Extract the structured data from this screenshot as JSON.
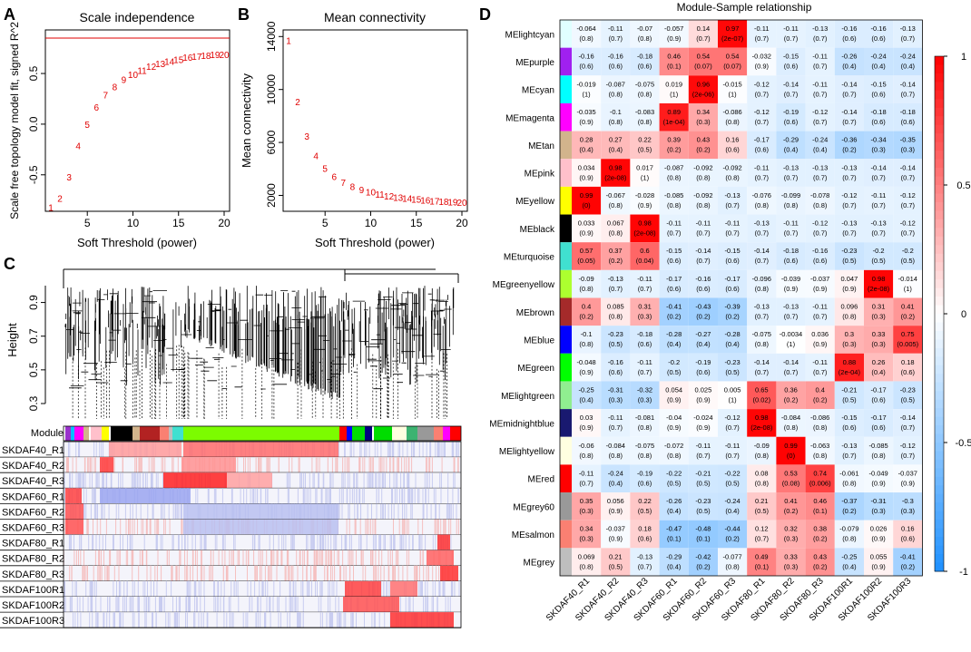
{
  "chart_data": [
    {
      "panel": "A",
      "type": "scatter",
      "title": "Scale independence",
      "xlabel": "Soft Threshold (power)",
      "ylabel": "Scale free topology model fit, signed R^2",
      "x": [
        1,
        2,
        3,
        4,
        5,
        6,
        7,
        8,
        9,
        10,
        11,
        12,
        13,
        14,
        15,
        16,
        17,
        18,
        19,
        20
      ],
      "y": [
        -0.82,
        -0.73,
        -0.52,
        -0.21,
        0.0,
        0.17,
        0.29,
        0.37,
        0.44,
        0.49,
        0.53,
        0.57,
        0.6,
        0.62,
        0.64,
        0.66,
        0.67,
        0.68,
        0.69,
        0.69
      ],
      "xticks": [
        5,
        10,
        15,
        20
      ],
      "yticks": [
        -0.5,
        0.0,
        0.5
      ],
      "xlim": [
        1,
        20
      ],
      "ylim": [
        -0.86,
        0.93
      ],
      "hline": 0.85,
      "point_color": "#e00000",
      "line_color": "#e00000"
    },
    {
      "panel": "B",
      "type": "scatter",
      "title": "Mean connectivity",
      "xlabel": "Soft Threshold (power)",
      "ylabel": "Mean connectivity",
      "x": [
        1,
        2,
        3,
        4,
        5,
        6,
        7,
        8,
        9,
        10,
        11,
        12,
        13,
        14,
        15,
        16,
        17,
        18,
        19,
        20
      ],
      "y": [
        13700,
        9100,
        6500,
        5000,
        4050,
        3450,
        3000,
        2700,
        2460,
        2270,
        2100,
        1970,
        1870,
        1790,
        1720,
        1660,
        1600,
        1560,
        1530,
        1500
      ],
      "xticks": [
        5,
        10,
        15,
        20
      ],
      "yticks": [
        2000,
        6000,
        10000,
        14000
      ],
      "xlim": [
        1,
        20
      ],
      "ylim": [
        800,
        14500
      ],
      "point_color": "#e00000"
    },
    {
      "panel": "C",
      "type": "dendrogram",
      "ylabel": "Height",
      "yticks": [
        0.3,
        0.5,
        0.7,
        0.9
      ],
      "ylim": [
        0.3,
        1.0
      ],
      "module_label": "Module",
      "module_colors": [
        "#9932cc",
        "#00bfff",
        "#ff00ff",
        "#d2b48c",
        "#ffc0cb",
        "#ffff00",
        "#000000",
        "#40e0d0",
        "#7cfc00",
        "#b22222",
        "#0000ff",
        "#00dd00",
        "#3cb371",
        "#000080",
        "#ffffe0",
        "#ff0000",
        "#999999",
        "#fa8072",
        "#bebebe"
      ],
      "samples": [
        "SKDAF40_R1",
        "SKDAF40_R2",
        "SKDAF40_R3",
        "SKDAF60_R1",
        "SKDAF60_R2",
        "SKDAF60_R3",
        "SKDAF80_R1",
        "SKDAF80_R2",
        "SKDAF80_R3",
        "SKDAF100R1",
        "SKDAF100R2",
        "SKDAF100R3"
      ]
    },
    {
      "panel": "D",
      "type": "heatmap",
      "title": "Module-Sample relationship",
      "rows": [
        "MElightcyan",
        "MEpurple",
        "MEcyan",
        "MEmagenta",
        "MEtan",
        "MEpink",
        "MEyellow",
        "MEblack",
        "MEturquoise",
        "MEgreenyellow",
        "MEbrown",
        "MEblue",
        "MEgreen",
        "MElightgreen",
        "MEmidnightblue",
        "MElightyellow",
        "MEred",
        "MEgrey60",
        "MEsalmon",
        "MEgrey"
      ],
      "row_colors": [
        "#e0ffff",
        "#a020f0",
        "#00ffff",
        "#ff00ff",
        "#d2b48c",
        "#ffc0cb",
        "#ffff00",
        "#000000",
        "#40e0d0",
        "#adff2f",
        "#a52a2a",
        "#0000ff",
        "#00ff00",
        "#90ee90",
        "#191970",
        "#ffffe0",
        "#ff0000",
        "#999999",
        "#fa8072",
        "#bebebe"
      ],
      "columns": [
        "SKDAF40_R1",
        "SKDAF40_R2",
        "SKDAF40_R3",
        "SKDAF60_R1",
        "SKDAF60_R2",
        "SKDAF60_R3",
        "SKDAF80_R1",
        "SKDAF80_R2",
        "SKDAF80_R3",
        "SKDAF100R1",
        "SKDAF100R2",
        "SKDAF100R3"
      ],
      "values": [
        [
          -0.064,
          -0.11,
          -0.07,
          -0.057,
          0.14,
          0.97,
          -0.11,
          -0.11,
          -0.13,
          -0.16,
          -0.16,
          -0.13
        ],
        [
          -0.16,
          -0.16,
          -0.18,
          0.46,
          0.54,
          0.54,
          -0.032,
          -0.15,
          -0.11,
          -0.26,
          -0.24,
          -0.24
        ],
        [
          -0.019,
          -0.087,
          -0.075,
          0.019,
          0.96,
          -0.015,
          -0.12,
          -0.14,
          -0.11,
          -0.14,
          -0.15,
          -0.14
        ],
        [
          -0.035,
          -0.1,
          -0.083,
          0.89,
          0.34,
          -0.086,
          -0.12,
          -0.19,
          -0.12,
          -0.14,
          -0.18,
          -0.18
        ],
        [
          0.28,
          0.27,
          0.22,
          0.39,
          0.43,
          0.16,
          -0.17,
          -0.29,
          -0.24,
          -0.36,
          -0.34,
          -0.35
        ],
        [
          0.034,
          0.98,
          0.017,
          -0.087,
          -0.092,
          -0.092,
          -0.11,
          -0.13,
          -0.13,
          -0.13,
          -0.14,
          -0.14
        ],
        [
          0.99,
          -0.067,
          -0.028,
          -0.085,
          -0.092,
          -0.13,
          -0.076,
          -0.099,
          -0.078,
          -0.12,
          -0.11,
          -0.12
        ],
        [
          0.033,
          0.067,
          0.98,
          -0.11,
          -0.11,
          -0.11,
          -0.13,
          -0.11,
          -0.12,
          -0.13,
          -0.13,
          -0.12
        ],
        [
          0.57,
          0.37,
          0.6,
          -0.15,
          -0.14,
          -0.15,
          -0.14,
          -0.18,
          -0.16,
          -0.23,
          -0.2,
          -0.2
        ],
        [
          -0.09,
          -0.13,
          -0.11,
          -0.17,
          -0.16,
          -0.17,
          -0.096,
          -0.039,
          -0.037,
          0.047,
          0.98,
          -0.014
        ],
        [
          0.4,
          0.085,
          0.31,
          -0.41,
          -0.43,
          -0.39,
          -0.13,
          -0.13,
          -0.11,
          0.096,
          0.31,
          0.41
        ],
        [
          -0.1,
          -0.23,
          -0.18,
          -0.28,
          -0.27,
          -0.28,
          -0.075,
          -0.0034,
          0.036,
          0.3,
          0.33,
          0.75
        ],
        [
          -0.048,
          -0.16,
          -0.11,
          -0.2,
          -0.19,
          -0.23,
          -0.14,
          -0.14,
          -0.11,
          0.88,
          0.26,
          0.18
        ],
        [
          -0.25,
          -0.31,
          -0.32,
          0.054,
          0.025,
          0.005,
          0.65,
          0.36,
          0.4,
          -0.21,
          -0.17,
          -0.23
        ],
        [
          0.03,
          -0.11,
          -0.081,
          -0.04,
          -0.024,
          -0.12,
          0.98,
          -0.084,
          -0.086,
          -0.15,
          -0.17,
          -0.14
        ],
        [
          -0.06,
          -0.084,
          -0.075,
          -0.072,
          -0.11,
          -0.11,
          -0.09,
          0.99,
          -0.063,
          -0.13,
          -0.085,
          -0.12
        ],
        [
          -0.11,
          -0.24,
          -0.19,
          -0.22,
          -0.21,
          -0.22,
          0.08,
          0.53,
          0.74,
          -0.061,
          -0.049,
          -0.037
        ],
        [
          0.35,
          0.056,
          0.22,
          -0.26,
          -0.23,
          -0.24,
          0.21,
          0.41,
          0.46,
          -0.37,
          -0.31,
          -0.3
        ],
        [
          0.34,
          -0.037,
          0.18,
          -0.47,
          -0.48,
          -0.44,
          0.12,
          0.32,
          0.38,
          -0.079,
          0.026,
          0.16
        ],
        [
          0.069,
          0.21,
          -0.13,
          -0.29,
          -0.42,
          -0.077,
          0.49,
          0.33,
          0.43,
          -0.25,
          0.055,
          -0.41
        ]
      ],
      "pvalues": [
        [
          "0.8",
          "0.7",
          "0.8",
          "0.9",
          "0.7",
          "2e-07",
          "0.7",
          "0.7",
          "0.7",
          "0.6",
          "0.6",
          "0.7"
        ],
        [
          "0.6",
          "0.6",
          "0.6",
          "0.1",
          "0.07",
          "0.07",
          "0.9",
          "0.6",
          "0.7",
          "0.4",
          "0.4",
          "0.4"
        ],
        [
          "1",
          "0.8",
          "0.8",
          "1",
          "2e-06",
          "1",
          "0.7",
          "0.7",
          "0.7",
          "0.7",
          "0.6",
          "0.7"
        ],
        [
          "0.9",
          "0.8",
          "0.8",
          "1e-04",
          "0.3",
          "0.8",
          "0.7",
          "0.6",
          "0.7",
          "0.7",
          "0.6",
          "0.6"
        ],
        [
          "0.4",
          "0.4",
          "0.5",
          "0.2",
          "0.2",
          "0.6",
          "0.6",
          "0.4",
          "0.4",
          "0.2",
          "0.3",
          "0.3"
        ],
        [
          "0.9",
          "2e-08",
          "1",
          "0.8",
          "0.8",
          "0.8",
          "0.7",
          "0.7",
          "0.7",
          "0.7",
          "0.7",
          "0.7"
        ],
        [
          "0",
          "0.8",
          "0.9",
          "0.8",
          "0.8",
          "0.7",
          "0.8",
          "0.8",
          "0.8",
          "0.7",
          "0.7",
          "0.7"
        ],
        [
          "0.9",
          "0.8",
          "2e-08",
          "0.7",
          "0.7",
          "0.7",
          "0.7",
          "0.7",
          "0.7",
          "0.7",
          "0.7",
          "0.7"
        ],
        [
          "0.05",
          "0.2",
          "0.04",
          "0.6",
          "0.7",
          "0.6",
          "0.7",
          "0.6",
          "0.6",
          "0.5",
          "0.5",
          "0.5"
        ],
        [
          "0.8",
          "0.7",
          "0.7",
          "0.6",
          "0.6",
          "0.6",
          "0.8",
          "0.9",
          "0.9",
          "0.9",
          "2e-08",
          "1"
        ],
        [
          "0.2",
          "0.8",
          "0.3",
          "0.2",
          "0.2",
          "0.2",
          "0.7",
          "0.7",
          "0.7",
          "0.8",
          "0.3",
          "0.2"
        ],
        [
          "0.8",
          "0.5",
          "0.6",
          "0.4",
          "0.4",
          "0.4",
          "0.8",
          "1",
          "0.9",
          "0.3",
          "0.3",
          "0.005"
        ],
        [
          "0.9",
          "0.6",
          "0.7",
          "0.5",
          "0.6",
          "0.5",
          "0.7",
          "0.7",
          "0.7",
          "2e-04",
          "0.4",
          "0.6"
        ],
        [
          "0.4",
          "0.3",
          "0.3",
          "0.9",
          "0.9",
          "1",
          "0.02",
          "0.2",
          "0.2",
          "0.5",
          "0.6",
          "0.5"
        ],
        [
          "0.9",
          "0.7",
          "0.8",
          "0.9",
          "0.9",
          "0.7",
          "2e-08",
          "0.8",
          "0.8",
          "0.6",
          "0.6",
          "0.7"
        ],
        [
          "0.8",
          "0.8",
          "0.8",
          "0.8",
          "0.7",
          "0.7",
          "0.8",
          "0",
          "0.8",
          "0.7",
          "0.8",
          "0.7"
        ],
        [
          "0.7",
          "0.4",
          "0.6",
          "0.5",
          "0.5",
          "0.5",
          "0.8",
          "0.08",
          "0.006",
          "0.8",
          "0.9",
          "0.9"
        ],
        [
          "0.3",
          "0.9",
          "0.5",
          "0.4",
          "0.5",
          "0.4",
          "0.5",
          "0.2",
          "0.1",
          "0.2",
          "0.3",
          "0.3"
        ],
        [
          "0.3",
          "0.9",
          "0.6",
          "0.1",
          "0.1",
          "0.2",
          "0.7",
          "0.3",
          "0.2",
          "0.8",
          "0.9",
          "0.6"
        ],
        [
          "0.8",
          "0.5",
          "0.7",
          "0.4",
          "0.2",
          "0.8",
          "0.1",
          "0.3",
          "0.2",
          "0.4",
          "0.9",
          "0.2"
        ]
      ],
      "colorbar_ticks": [
        "1",
        "0.5",
        "0",
        "-0.5",
        "-1"
      ],
      "colorbar_range": [
        -1,
        1
      ],
      "colors": {
        "negative": "#1e90ff",
        "zero": "#ffffff",
        "positive": "#ff0000"
      }
    }
  ],
  "panel_labels": [
    "A",
    "B",
    "C",
    "D"
  ]
}
